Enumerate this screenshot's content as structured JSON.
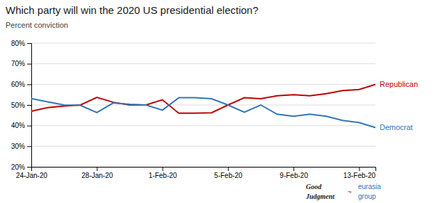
{
  "chart_data": {
    "type": "line",
    "title": "Which party will win the 2020 US presidential election?",
    "subtitle": "Percent conviction",
    "x": [
      0,
      1,
      2,
      3,
      4,
      5,
      6,
      7,
      8,
      9,
      10,
      11,
      12,
      13,
      14,
      15,
      16,
      17,
      18,
      19,
      20,
      21
    ],
    "series": [
      {
        "name": "Republican",
        "color": "#c00000",
        "values": [
          0.47,
          0.487,
          0.495,
          0.5,
          0.537,
          0.513,
          0.5,
          0.5,
          0.525,
          0.46,
          0.46,
          0.462,
          0.5,
          0.535,
          0.53,
          0.545,
          0.55,
          0.545,
          0.555,
          0.57,
          0.575,
          0.6
        ]
      },
      {
        "name": "Democrat",
        "color": "#2e75b6",
        "values": [
          0.531,
          0.515,
          0.5,
          0.498,
          0.463,
          0.51,
          0.503,
          0.5,
          0.475,
          0.535,
          0.535,
          0.53,
          0.5,
          0.465,
          0.5,
          0.455,
          0.445,
          0.455,
          0.445,
          0.425,
          0.415,
          0.39
        ]
      }
    ],
    "xlim": [
      0,
      21
    ],
    "xticks": [
      {
        "value": 0,
        "label": "24-Jan-20"
      },
      {
        "value": 4,
        "label": "28-Jan-20"
      },
      {
        "value": 8,
        "label": "1-Feb-20"
      },
      {
        "value": 12,
        "label": "5-Feb-20"
      },
      {
        "value": 16,
        "label": "9-Feb-20"
      },
      {
        "value": 20,
        "label": "13-Feb-20"
      }
    ],
    "ylim": [
      0.2,
      0.8
    ],
    "yticks": [
      {
        "value": 0.2,
        "label": "20%"
      },
      {
        "value": 0.3,
        "label": "30%"
      },
      {
        "value": 0.4,
        "label": "40%"
      },
      {
        "value": 0.5,
        "label": "50%"
      },
      {
        "value": 0.6,
        "label": "60%"
      },
      {
        "value": 0.7,
        "label": "70%"
      },
      {
        "value": 0.8,
        "label": "80%"
      }
    ],
    "grid": true,
    "annotations": [
      "Good",
      "Judgment",
      "~",
      "eurasia",
      "group"
    ]
  }
}
